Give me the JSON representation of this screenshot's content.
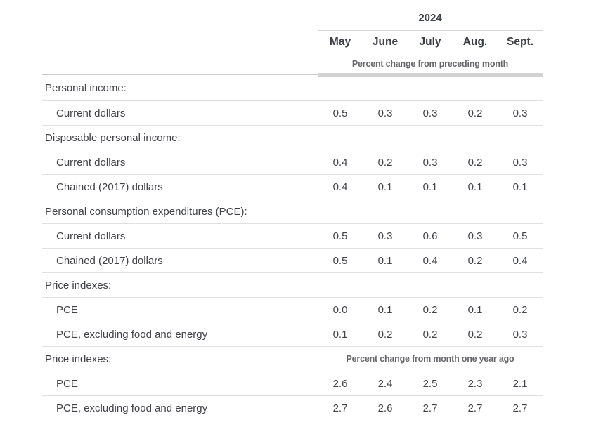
{
  "chart_data": {
    "type": "table",
    "column_group_header": "2024",
    "columns": [
      "May",
      "June",
      "July",
      "Aug.",
      "Sept."
    ],
    "header_note": "Percent change from preceding month",
    "rows": [
      {
        "label": "Personal income:",
        "type": "section",
        "values": []
      },
      {
        "label": "Current dollars",
        "type": "data",
        "values": [
          "0.5",
          "0.3",
          "0.3",
          "0.2",
          "0.3"
        ]
      },
      {
        "label": "Disposable personal income:",
        "type": "section",
        "values": []
      },
      {
        "label": "Current dollars",
        "type": "data",
        "values": [
          "0.4",
          "0.2",
          "0.3",
          "0.2",
          "0.3"
        ]
      },
      {
        "label": "Chained (2017) dollars",
        "type": "data",
        "values": [
          "0.4",
          "0.1",
          "0.1",
          "0.1",
          "0.1"
        ]
      },
      {
        "label": "Personal consumption expenditures (PCE):",
        "type": "section",
        "values": []
      },
      {
        "label": "Current dollars",
        "type": "data",
        "values": [
          "0.5",
          "0.3",
          "0.6",
          "0.3",
          "0.5"
        ]
      },
      {
        "label": "Chained (2017) dollars",
        "type": "data",
        "values": [
          "0.5",
          "0.1",
          "0.4",
          "0.2",
          "0.4"
        ]
      },
      {
        "label": "Price indexes:",
        "type": "section",
        "values": []
      },
      {
        "label": "PCE",
        "type": "data",
        "values": [
          "0.0",
          "0.1",
          "0.2",
          "0.1",
          "0.2"
        ]
      },
      {
        "label": "PCE, excluding food and energy",
        "type": "data",
        "values": [
          "0.1",
          "0.2",
          "0.2",
          "0.2",
          "0.3"
        ]
      },
      {
        "label": "Price indexes:",
        "type": "section",
        "note": "Percent change from month one year ago",
        "values": []
      },
      {
        "label": "PCE",
        "type": "data",
        "values": [
          "2.6",
          "2.4",
          "2.5",
          "2.3",
          "2.1"
        ]
      },
      {
        "label": "PCE, excluding food and energy",
        "type": "data",
        "values": [
          "2.7",
          "2.6",
          "2.7",
          "2.7",
          "2.7"
        ]
      }
    ],
    "layout": {
      "value_alignment": "center",
      "grid": "horizontal-rules-only"
    },
    "colors": {
      "text": "#404248",
      "note_text": "#67686c",
      "row_border": "#e1e1e1",
      "header_border": "#d4d4d4",
      "header_bar": "#d2d2d2",
      "background": "#ffffff"
    }
  }
}
